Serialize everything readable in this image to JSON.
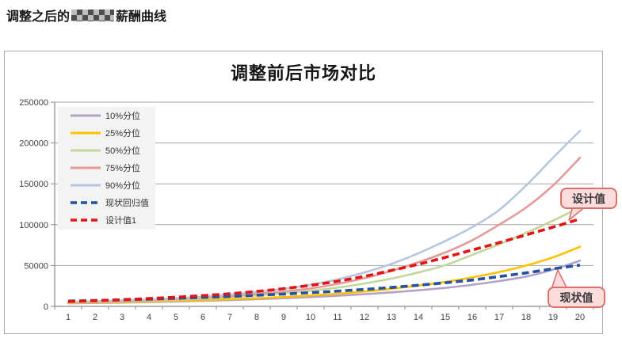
{
  "document": {
    "title_prefix": "调整之后的",
    "title_suffix": "薪酬曲线"
  },
  "chart": {
    "title": "调整前后市场对比"
  },
  "colors": {
    "grid": "#a6a6a6",
    "axis": "#8a8a8a",
    "tick_label": "#404040",
    "legend_panel": "#f3f3f3",
    "legend_text": "#333333",
    "callout_fill": "#fcdcdc",
    "callout_border": "#dd6e68"
  },
  "chart_data": {
    "type": "line",
    "title": "调整前后市场对比",
    "x": [
      1,
      2,
      3,
      4,
      5,
      6,
      7,
      8,
      9,
      10,
      11,
      12,
      13,
      14,
      15,
      16,
      17,
      18,
      19,
      20
    ],
    "xlabel": "",
    "ylabel": "",
    "ylim": [
      0,
      250000
    ],
    "yticks": [
      0,
      50000,
      100000,
      150000,
      200000,
      250000
    ],
    "grid": true,
    "legend_position": "upper-left-inside",
    "series": [
      {
        "name": "10%分位",
        "color": "#b3a2c7",
        "style": "solid",
        "values": [
          3800,
          4200,
          4700,
          5300,
          6000,
          6800,
          7700,
          8800,
          10000,
          11400,
          13000,
          14900,
          17100,
          19700,
          22700,
          26400,
          31000,
          36500,
          45000,
          56000
        ]
      },
      {
        "name": "25%分位",
        "color": "#ffc000",
        "style": "solid",
        "values": [
          4200,
          4700,
          5300,
          6000,
          6800,
          7700,
          8800,
          10000,
          11500,
          13300,
          15400,
          18100,
          21500,
          25500,
          30000,
          35500,
          42000,
          50000,
          60000,
          73000
        ]
      },
      {
        "name": "50%分位",
        "color": "#c3d69b",
        "style": "solid",
        "values": [
          4800,
          5400,
          6200,
          7100,
          8200,
          9600,
          11300,
          13400,
          16000,
          19200,
          23000,
          28000,
          34000,
          41500,
          50500,
          63000,
          76000,
          90000,
          105000,
          121000
        ]
      },
      {
        "name": "75%分位",
        "color": "#e59a9a",
        "style": "solid",
        "values": [
          5000,
          5700,
          6600,
          7700,
          9000,
          10600,
          12600,
          15100,
          18200,
          22000,
          27500,
          34500,
          43500,
          54000,
          66000,
          81000,
          100000,
          121000,
          148000,
          182000
        ]
      },
      {
        "name": "90%分位",
        "color": "#b5c7e0",
        "style": "solid",
        "values": [
          5500,
          6300,
          7300,
          8500,
          10000,
          12000,
          14500,
          17600,
          21500,
          26500,
          33000,
          41500,
          52000,
          65000,
          80000,
          97000,
          118000,
          148000,
          182000,
          215000
        ]
      },
      {
        "name": "现状回归值",
        "color": "#2152a3",
        "style": "dashed",
        "values": [
          6500,
          7200,
          8000,
          8900,
          9900,
          11000,
          12200,
          13600,
          15100,
          16800,
          18700,
          20800,
          23200,
          25900,
          28900,
          32300,
          36500,
          41000,
          46000,
          50500
        ]
      },
      {
        "name": "设计值1",
        "color": "#e31414",
        "style": "dashed",
        "values": [
          6000,
          7000,
          8200,
          9600,
          11300,
          13200,
          15500,
          18300,
          21700,
          25800,
          30800,
          36800,
          44000,
          51500,
          60000,
          69000,
          78000,
          87500,
          97000,
          107000
        ]
      }
    ],
    "annotations": [
      {
        "text": "设计值",
        "attached_to": "设计值1",
        "near_x": 20
      },
      {
        "text": "现状值",
        "attached_to": "现状回归值",
        "near_x": 19
      }
    ]
  }
}
